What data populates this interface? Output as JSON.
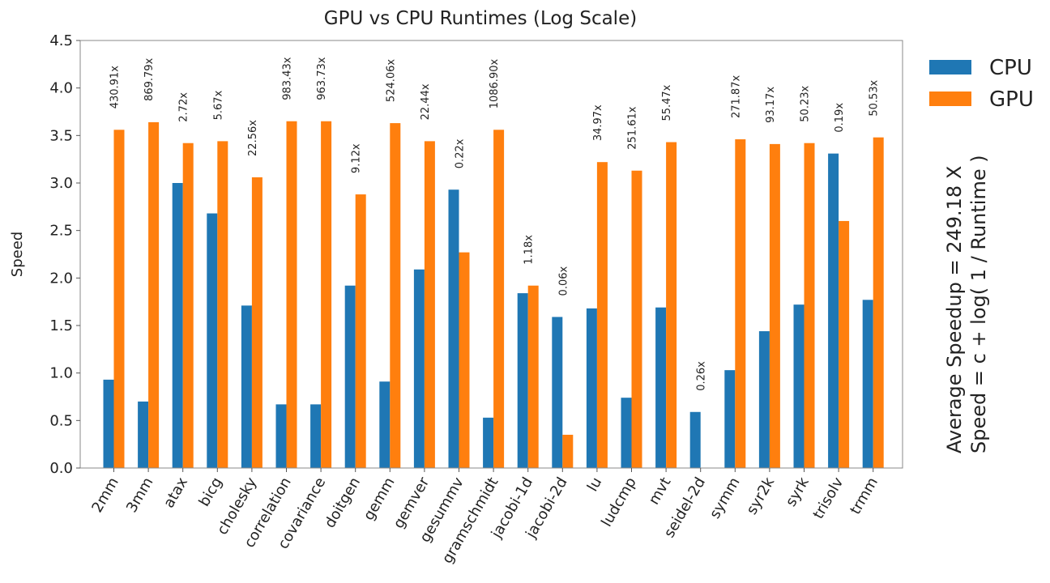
{
  "chart_data": {
    "type": "bar",
    "title": "GPU vs CPU Runtimes (Log Scale)",
    "xlabel": "",
    "ylabel": "Speed",
    "ylim": [
      0,
      4.5
    ],
    "yticks": [
      "0.0",
      "0.5",
      "1.0",
      "1.5",
      "2.0",
      "2.5",
      "3.0",
      "3.5",
      "4.0",
      "4.5"
    ],
    "grid": false,
    "legend_position": "top-right",
    "categories": [
      "2mm",
      "3mm",
      "atax",
      "bicg",
      "cholesky",
      "correlation",
      "covariance",
      "doitgen",
      "gemm",
      "gemver",
      "gesummv",
      "gramschmidt",
      "jacobi-1d",
      "jacobi-2d",
      "lu",
      "ludcmp",
      "mvt",
      "seidel-2d",
      "symm",
      "syr2k",
      "syrk",
      "trisolv",
      "trmm"
    ],
    "series": [
      {
        "name": "CPU",
        "color": "#1f77b4",
        "values": [
          0.93,
          0.7,
          3.0,
          2.68,
          1.71,
          0.67,
          0.67,
          1.92,
          0.91,
          2.09,
          2.93,
          0.53,
          1.84,
          1.59,
          1.68,
          0.74,
          1.69,
          0.59,
          1.03,
          1.44,
          1.72,
          3.31,
          1.77
        ]
      },
      {
        "name": "GPU",
        "color": "#ff7f0e",
        "values": [
          3.56,
          3.64,
          3.42,
          3.44,
          3.06,
          3.65,
          3.65,
          2.88,
          3.63,
          3.44,
          2.27,
          3.56,
          1.92,
          0.35,
          3.22,
          3.13,
          3.43,
          0.0,
          3.46,
          3.41,
          3.42,
          2.6,
          3.48
        ]
      }
    ],
    "speedup_labels": [
      "430.91x",
      "869.79x",
      "2.72x",
      "5.67x",
      "22.56x",
      "983.43x",
      "963.73x",
      "9.12x",
      "524.06x",
      "22.44x",
      "0.22x",
      "1086.90x",
      "1.18x",
      "0.06x",
      "34.97x",
      "251.61x",
      "55.47x",
      "0.26x",
      "271.87x",
      "93.17x",
      "50.23x",
      "0.19x",
      "50.53x"
    ],
    "annotation_lines": [
      "Average Speedup = 249.18 X",
      "Speed = c + log( 1 / Runtime )"
    ]
  }
}
